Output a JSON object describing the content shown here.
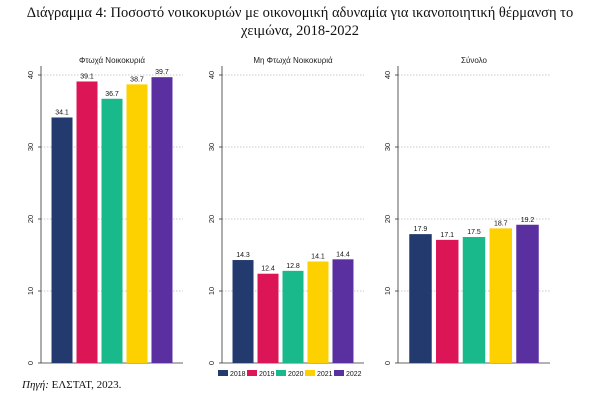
{
  "title_line1": "Διάγραμμα 4: Ποσοστό νοικοκυριών με οικονομική αδυναμία για ικανοποιητική θέρμανση το",
  "title_line2": "χειμώνα, 2018-2022",
  "source_label": "Πηγή:",
  "source_text": " ΕΛΣΤΑΤ, 2023.",
  "chart_data": {
    "type": "bar",
    "title": "Διάγραμμα 4: Ποσοστό νοικοκυριών με οικονομική αδυναμία για ικανοποιητική θέρμανση το χειμώνα, 2018-2022",
    "ylim": [
      0,
      40
    ],
    "yticks": [
      "0",
      "10",
      "20",
      "30",
      "40"
    ],
    "grid": true,
    "legend_position": "bottom",
    "categories": [
      "2018",
      "2019",
      "2020",
      "2021",
      "2022"
    ],
    "colors": [
      "#233a6e",
      "#dc1557",
      "#19b98b",
      "#fdd000",
      "#5a2fa0"
    ],
    "panels": [
      {
        "name": "Φτωχά Νοικοκυριά",
        "values": [
          34.1,
          39.1,
          36.7,
          38.7,
          39.7
        ],
        "labels": [
          "34.1",
          "39.1",
          "36.7",
          "38.7",
          "39.7"
        ]
      },
      {
        "name": "Μη Φτωχά Νοικοκυριά",
        "values": [
          14.3,
          12.4,
          12.8,
          14.1,
          14.4
        ],
        "labels": [
          "14.3",
          "12.4",
          "12.8",
          "14.1",
          "14.4"
        ]
      },
      {
        "name": "Σύνολο",
        "values": [
          17.9,
          17.1,
          17.5,
          18.7,
          19.2
        ],
        "labels": [
          "17.9",
          "17.1",
          "17.5",
          "18.7",
          "19.2"
        ]
      }
    ]
  }
}
